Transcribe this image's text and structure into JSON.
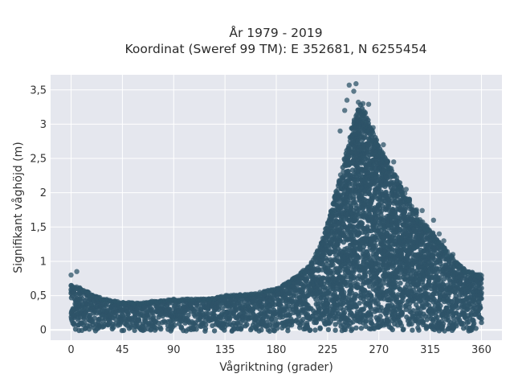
{
  "chart_data": {
    "type": "scatter",
    "title_lines": [
      "År 1979 - 2019",
      "Koordinat (Sweref 99 TM): E 352681, N 6255454"
    ],
    "xlabel": "Vågriktning (grader)",
    "ylabel": "Signifikant våghöjd (m)",
    "xlim": [
      -18,
      378
    ],
    "ylim": [
      -0.15,
      3.72
    ],
    "x_ticks": [
      0,
      45,
      90,
      135,
      180,
      225,
      270,
      315,
      360
    ],
    "x_tick_labels": [
      "0",
      "45",
      "90",
      "135",
      "180",
      "225",
      "270",
      "315",
      "360"
    ],
    "y_ticks": [
      0,
      0.5,
      1,
      1.5,
      2,
      2.5,
      3,
      3.5
    ],
    "y_tick_labels": [
      "0",
      "0,5",
      "1",
      "1,5",
      "2",
      "2,5",
      "3",
      "3,5"
    ],
    "grid": true,
    "legend": "none",
    "point_color": "#2e5468",
    "plot_background": "#e5e7ee",
    "envelope": {
      "direction_deg": [
        0,
        10,
        20,
        30,
        45,
        60,
        90,
        120,
        135,
        150,
        165,
        180,
        195,
        210,
        220,
        230,
        240,
        248,
        255,
        262,
        270,
        280,
        290,
        300,
        310,
        320,
        330,
        340,
        350,
        360
      ],
      "max_wave_height_m": [
        0.65,
        0.6,
        0.5,
        0.45,
        0.4,
        0.4,
        0.45,
        0.45,
        0.5,
        0.52,
        0.55,
        0.6,
        0.75,
        0.95,
        1.3,
        1.85,
        2.5,
        3.1,
        3.3,
        3.0,
        2.7,
        2.4,
        2.1,
        1.8,
        1.55,
        1.35,
        1.15,
        0.95,
        0.85,
        0.8
      ]
    },
    "outliers": [
      {
        "x": 5,
        "y": 0.85
      },
      {
        "x": 0,
        "y": 0.8
      },
      {
        "x": 244,
        "y": 3.57
      },
      {
        "x": 250,
        "y": 3.59
      },
      {
        "x": 248,
        "y": 3.48
      },
      {
        "x": 242,
        "y": 3.35
      },
      {
        "x": 252,
        "y": 3.32
      },
      {
        "x": 256,
        "y": 3.3
      },
      {
        "x": 261,
        "y": 3.29
      },
      {
        "x": 240,
        "y": 3.2
      },
      {
        "x": 258,
        "y": 3.17
      },
      {
        "x": 236,
        "y": 2.9
      },
      {
        "x": 265,
        "y": 2.95
      },
      {
        "x": 274,
        "y": 2.7
      },
      {
        "x": 283,
        "y": 2.45
      },
      {
        "x": 294,
        "y": 2.05
      },
      {
        "x": 291,
        "y": 1.95
      },
      {
        "x": 303,
        "y": 1.75
      },
      {
        "x": 308,
        "y": 1.74
      },
      {
        "x": 318,
        "y": 1.6
      },
      {
        "x": 323,
        "y": 1.4
      },
      {
        "x": 327,
        "y": 1.3
      },
      {
        "x": 335,
        "y": 1.1
      },
      {
        "x": 345,
        "y": 0.85
      }
    ]
  }
}
